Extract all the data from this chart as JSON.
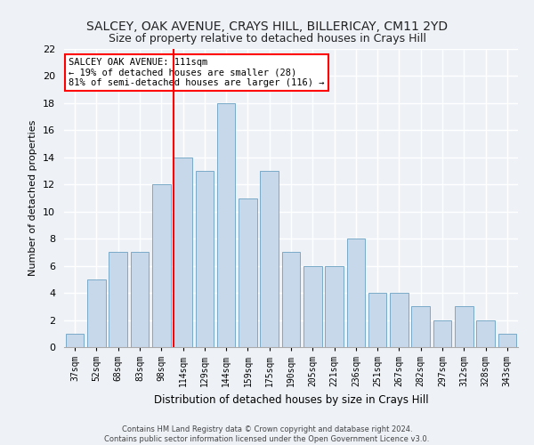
{
  "title": "SALCEY, OAK AVENUE, CRAYS HILL, BILLERICAY, CM11 2YD",
  "subtitle": "Size of property relative to detached houses in Crays Hill",
  "xlabel": "Distribution of detached houses by size in Crays Hill",
  "ylabel": "Number of detached properties",
  "bar_color": "#c8d8eb",
  "bar_edge_color": "#7aaac8",
  "categories": [
    "37sqm",
    "52sqm",
    "68sqm",
    "83sqm",
    "98sqm",
    "114sqm",
    "129sqm",
    "144sqm",
    "159sqm",
    "175sqm",
    "190sqm",
    "205sqm",
    "221sqm",
    "236sqm",
    "251sqm",
    "267sqm",
    "282sqm",
    "297sqm",
    "312sqm",
    "328sqm",
    "343sqm"
  ],
  "values": [
    1,
    5,
    7,
    7,
    12,
    14,
    13,
    18,
    11,
    13,
    7,
    6,
    6,
    8,
    4,
    4,
    3,
    2,
    3,
    2,
    1
  ],
  "ylim": [
    0,
    22
  ],
  "yticks": [
    0,
    2,
    4,
    6,
    8,
    10,
    12,
    14,
    16,
    18,
    20,
    22
  ],
  "vline_color": "red",
  "annotation_text": "SALCEY OAK AVENUE: 111sqm\n← 19% of detached houses are smaller (28)\n81% of semi-detached houses are larger (116) →",
  "annotation_box_color": "white",
  "annotation_box_edge_color": "red",
  "footer_line1": "Contains HM Land Registry data © Crown copyright and database right 2024.",
  "footer_line2": "Contains public sector information licensed under the Open Government Licence v3.0.",
  "background_color": "#eef2f7",
  "grid_color": "white",
  "title_fontsize": 10,
  "subtitle_fontsize": 9
}
